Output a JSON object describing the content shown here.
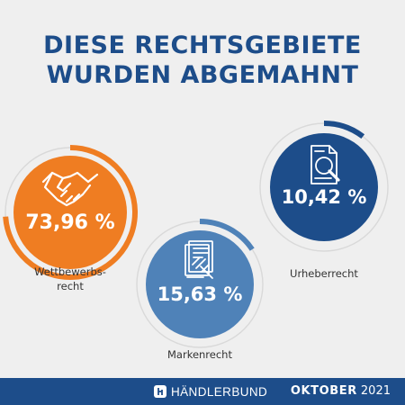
{
  "header": {
    "title_line1": "DIESE RECHTSGEBIETE",
    "title_line2": "WURDEN ABGEMAHNT"
  },
  "chart_data": {
    "type": "pie",
    "categories": [
      "Wettbewerbsrecht",
      "Markenrecht",
      "Urheberrecht"
    ],
    "values": [
      73.96,
      15.63,
      10.42
    ],
    "value_labels": [
      "73,96 %",
      "15,63 %",
      "10,42 %"
    ],
    "label_lines": [
      [
        "Wettbewerbs-",
        "recht"
      ],
      [
        "Markenrecht"
      ],
      [
        "Urheberrecht"
      ]
    ],
    "colors": [
      "#ef7d22",
      "#4f82b8",
      "#1d4d8a"
    ],
    "icons": [
      "handshake-icon",
      "contract-gavel-icon",
      "document-search-icon"
    ]
  },
  "footer": {
    "brand": "HÄNDLERBUND",
    "month": "OKTOBER",
    "year": "2021",
    "background": "#1d4d8a"
  }
}
